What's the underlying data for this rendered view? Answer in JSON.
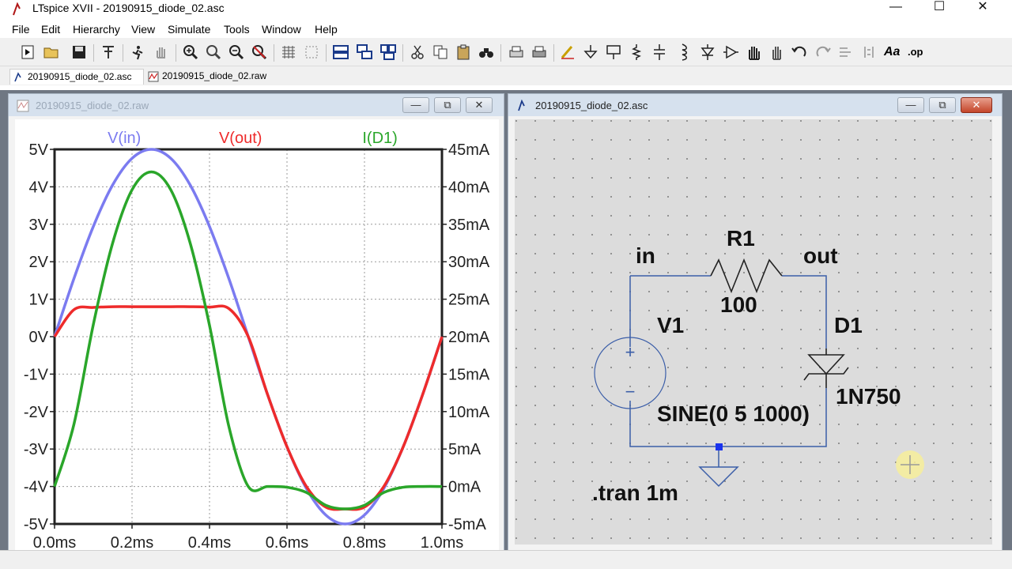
{
  "window": {
    "title": "LTspice XVII - 20190915_diode_02.asc",
    "minimize_glyph": "—",
    "maximize_glyph": "☐",
    "close_glyph": "✕"
  },
  "menu": [
    "File",
    "Edit",
    "Hierarchy",
    "View",
    "Simulate",
    "Tools",
    "Window",
    "Help"
  ],
  "toolbar_icons": [
    "new-schematic-icon",
    "open-folder-icon",
    "save-icon",
    "control-panel-icon",
    "run-icon",
    "halt-icon",
    "zoom-in-icon",
    "pan-icon",
    "zoom-out-icon",
    "zoom-fit-icon",
    "autorange-icon",
    "grid-icon",
    "tile-horizontal-icon",
    "cascade-icon",
    "tile-vertical-icon",
    "cut-icon",
    "copy-icon",
    "paste-icon",
    "find-icon",
    "print-preview-icon",
    "print-icon",
    "wire-icon",
    "ground-icon",
    "label-net-icon",
    "resistor-icon",
    "capacitor-icon",
    "inductor-icon",
    "diode-icon",
    "component-icon",
    "move-icon",
    "drag-icon",
    "undo-icon",
    "redo-icon",
    "rotate-icon",
    "mirror-icon",
    "text-icon",
    "spice-directive-icon"
  ],
  "toolbar_text": {
    "text_tool": "Aa",
    "op_tool": ".op"
  },
  "tabs": [
    {
      "label": "20190915_diode_02.asc",
      "active": true
    },
    {
      "label": "20190915_diode_02.raw",
      "active": false
    }
  ],
  "plot_window": {
    "title": "20190915_diode_02.raw",
    "traces": [
      {
        "label": "V(in)",
        "color": "#7b7bf0"
      },
      {
        "label": "V(out)",
        "color": "#ee2b2b"
      },
      {
        "label": "I(D1)",
        "color": "#2aa62a"
      }
    ],
    "left_ticks": [
      "5V",
      "4V",
      "3V",
      "2V",
      "1V",
      "0V",
      "-1V",
      "-2V",
      "-3V",
      "-4V",
      "-5V"
    ],
    "right_ticks": [
      "45mA",
      "40mA",
      "35mA",
      "30mA",
      "25mA",
      "20mA",
      "15mA",
      "10mA",
      "5mA",
      "0mA",
      "-5mA"
    ],
    "x_ticks": [
      "0.0ms",
      "0.2ms",
      "0.4ms",
      "0.6ms",
      "0.8ms",
      "1.0ms"
    ]
  },
  "chart_data": {
    "type": "line",
    "x": [
      0,
      0.05,
      0.1,
      0.15,
      0.2,
      0.25,
      0.3,
      0.35,
      0.4,
      0.45,
      0.5,
      0.55,
      0.6,
      0.65,
      0.7,
      0.75,
      0.8,
      0.85,
      0.9,
      0.95,
      1.0
    ],
    "xlabel": "",
    "xlim": [
      0,
      1.0
    ],
    "ylim_left": [
      -5,
      5
    ],
    "ylim_right": [
      -5,
      45
    ],
    "grid": true,
    "series": [
      {
        "name": "V(in)",
        "axis": "left",
        "values": [
          0,
          1.55,
          2.94,
          4.05,
          4.76,
          5.0,
          4.76,
          4.05,
          2.94,
          1.55,
          0,
          -1.55,
          -2.94,
          -4.05,
          -4.76,
          -5.0,
          -4.76,
          -4.05,
          -2.94,
          -1.55,
          0
        ]
      },
      {
        "name": "V(out)",
        "axis": "left",
        "values": [
          0,
          0.72,
          0.78,
          0.8,
          0.8,
          0.8,
          0.8,
          0.8,
          0.79,
          0.75,
          0,
          -1.55,
          -2.94,
          -4.0,
          -4.55,
          -4.6,
          -4.55,
          -4.0,
          -2.94,
          -1.55,
          0
        ]
      },
      {
        "name": "I(D1)",
        "axis": "right",
        "values": [
          0,
          8.3,
          21.6,
          32.5,
          39.6,
          42.0,
          39.6,
          32.5,
          21.5,
          8.0,
          0,
          0,
          -0.1,
          -0.8,
          -2.5,
          -3.0,
          -2.5,
          -0.8,
          -0.1,
          0,
          0
        ]
      }
    ]
  },
  "schematic_window": {
    "title": "20190915_diode_02.asc",
    "labels": {
      "node_in": "in",
      "node_out": "out",
      "r1_name": "R1",
      "r1_value": "100",
      "v1_name": "V1",
      "v1_value": "SINE(0 5 1000)",
      "d1_name": "D1",
      "d1_value": "1N750",
      "directive": ".tran 1m",
      "plus": "+",
      "minus": "−"
    }
  }
}
